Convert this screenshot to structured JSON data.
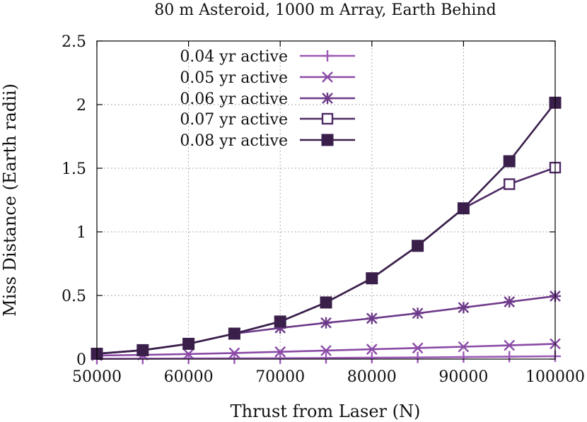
{
  "chart_data": {
    "type": "line",
    "title": "80 m Asteroid, 1000 m Array, Earth Behind",
    "xlabel": "Thrust from Laser (N)",
    "ylabel": "Miss Distance (Earth radii)",
    "xlim": [
      50000,
      100000
    ],
    "ylim": [
      0,
      2.5
    ],
    "xticks": [
      50000,
      60000,
      70000,
      80000,
      90000,
      100000
    ],
    "xtick_labels": [
      "50000",
      "60000",
      "70000",
      "80000",
      "90000",
      "100000"
    ],
    "yticks": [
      0,
      0.5,
      1,
      1.5,
      2,
      2.5
    ],
    "ytick_labels": [
      "0",
      "0.5",
      "1",
      "1.5",
      "2",
      "2.5"
    ],
    "grid": true,
    "legend_position": "top-left",
    "x": [
      50000,
      55000,
      60000,
      65000,
      70000,
      75000,
      80000,
      85000,
      90000,
      95000,
      100000
    ],
    "series": [
      {
        "name": "0.04 yr active",
        "marker": "plus",
        "color": "#9b59b6",
        "values": [
          0.003,
          0.004,
          0.005,
          0.006,
          0.007,
          0.009,
          0.011,
          0.013,
          0.016,
          0.019,
          0.022
        ]
      },
      {
        "name": "0.05 yr active",
        "marker": "cross",
        "color": "#8a4aa6",
        "values": [
          0.028,
          0.033,
          0.04,
          0.048,
          0.057,
          0.067,
          0.077,
          0.087,
          0.097,
          0.108,
          0.12
        ]
      },
      {
        "name": "0.06 yr active",
        "marker": "star",
        "color": "#6e3a8a",
        "values": [
          0.042,
          0.07,
          0.12,
          0.2,
          0.245,
          0.285,
          0.32,
          0.36,
          0.405,
          0.45,
          0.495
        ]
      },
      {
        "name": "0.07 yr active",
        "marker": "square-open",
        "color": "#4f2a66",
        "values": [
          0.042,
          0.07,
          0.12,
          0.2,
          0.295,
          0.445,
          0.635,
          0.89,
          1.185,
          1.375,
          1.505
        ]
      },
      {
        "name": "0.08 yr active",
        "marker": "square-filled",
        "color": "#3a1f4a",
        "values": [
          0.042,
          0.07,
          0.12,
          0.2,
          0.295,
          0.445,
          0.635,
          0.89,
          1.185,
          1.555,
          2.015
        ]
      }
    ]
  }
}
